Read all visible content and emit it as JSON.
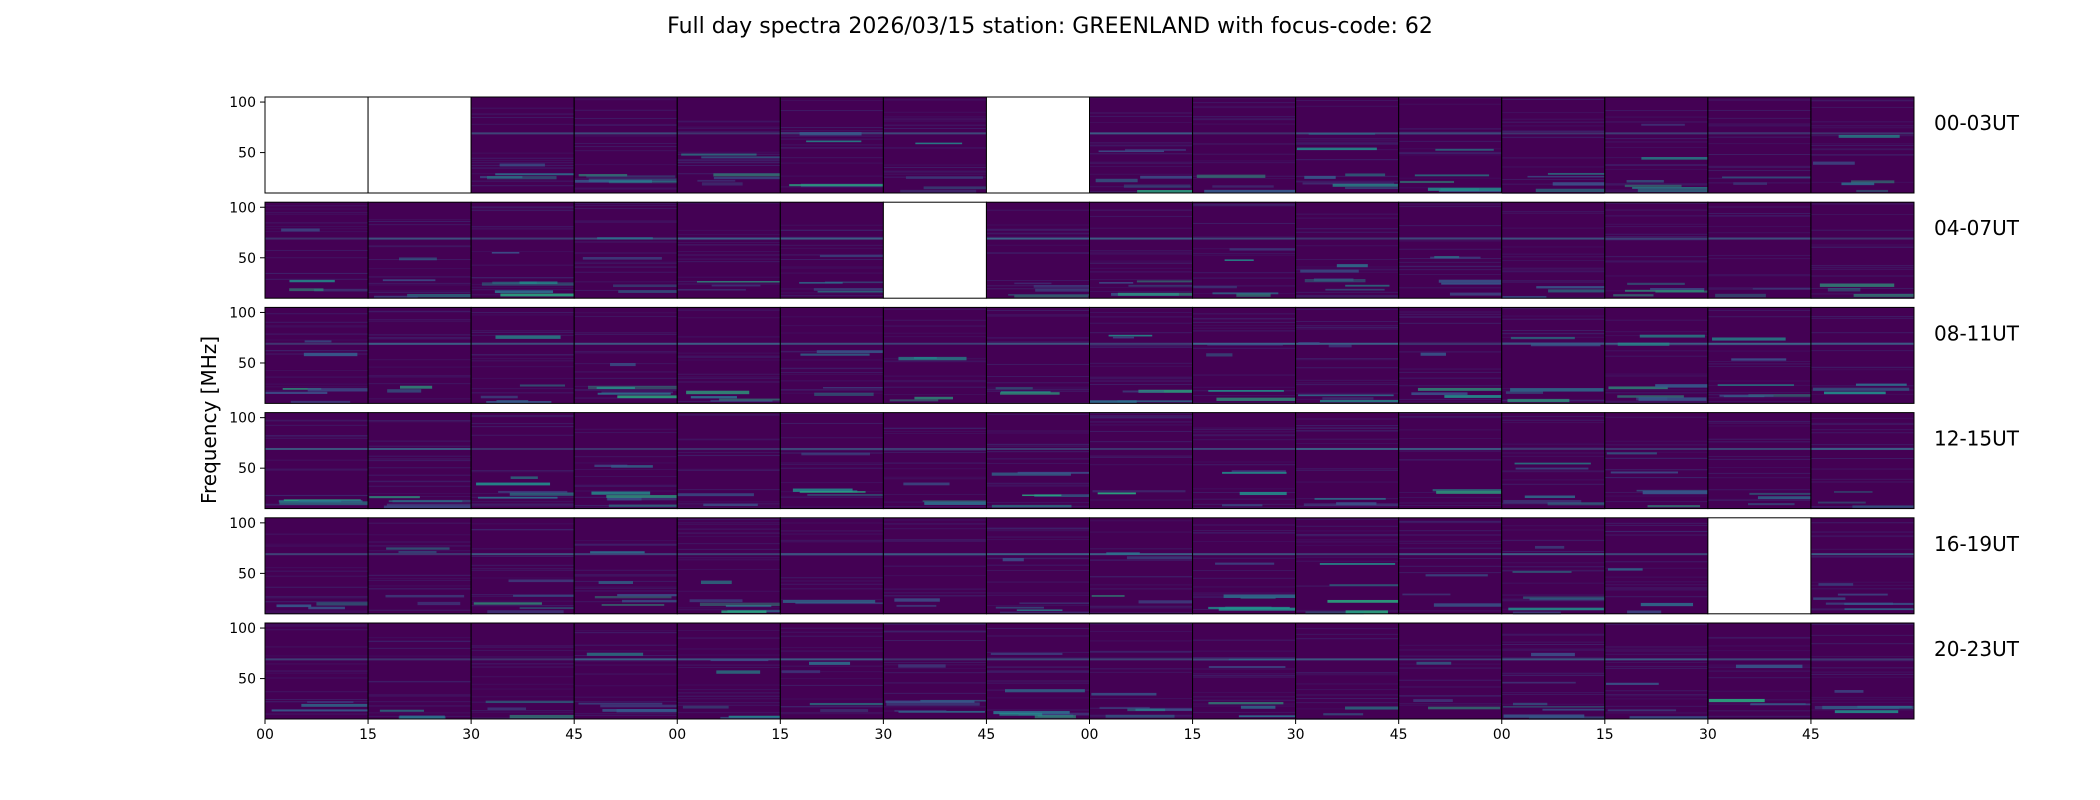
{
  "chart_data": {
    "type": "heatmap",
    "title": "Full day spectra 2026/03/15 station: GREENLAND with focus-code: 62",
    "ylabel": "Frequency [MHz]",
    "xlabel": "",
    "ylim": [
      10,
      105
    ],
    "y_ticks": [
      "100",
      "50"
    ],
    "y_tick_values": [
      100,
      50
    ],
    "x_ticks": [
      "00",
      "15",
      "30",
      "45",
      "00",
      "15",
      "30",
      "45",
      "00",
      "15",
      "30",
      "45",
      "00",
      "15",
      "30",
      "45"
    ],
    "colormap": "viridis",
    "rows": [
      {
        "label": "00-03UT",
        "missing": [
          0,
          1,
          7
        ]
      },
      {
        "label": "04-07UT",
        "missing": [
          6
        ]
      },
      {
        "label": "08-11UT",
        "missing": []
      },
      {
        "label": "12-15UT",
        "missing": []
      },
      {
        "label": "16-19UT",
        "missing": [
          14
        ]
      },
      {
        "label": "20-23UT",
        "missing": []
      }
    ],
    "panels_per_row": 16,
    "panel_minutes": 15
  },
  "colors": {
    "background": "#440154",
    "missing": "#ffffff"
  }
}
